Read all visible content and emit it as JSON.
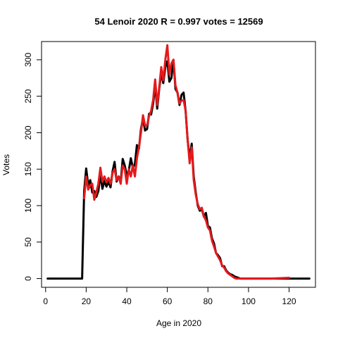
{
  "chart_data": {
    "type": "line",
    "title": "54 Lenoir 2020 R = 0.997 votes = 12569",
    "xlabel": "Age in 2020",
    "ylabel": "Votes",
    "xlim": [
      -2,
      133
    ],
    "ylim": [
      -12,
      325
    ],
    "xticks": [
      0,
      20,
      40,
      60,
      80,
      100,
      120
    ],
    "yticks": [
      0,
      50,
      100,
      150,
      200,
      250,
      300
    ],
    "grid": false,
    "legend": "none",
    "series": [
      {
        "color": "#000000",
        "x": [
          1,
          2,
          3,
          4,
          5,
          6,
          7,
          8,
          9,
          10,
          11,
          12,
          13,
          14,
          15,
          16,
          17,
          18,
          19,
          20,
          21,
          22,
          23,
          24,
          25,
          26,
          27,
          28,
          29,
          30,
          31,
          32,
          33,
          34,
          35,
          36,
          37,
          38,
          39,
          40,
          41,
          42,
          43,
          44,
          45,
          46,
          47,
          48,
          49,
          50,
          51,
          52,
          53,
          54,
          55,
          56,
          57,
          58,
          59,
          60,
          61,
          62,
          63,
          64,
          65,
          66,
          67,
          68,
          69,
          70,
          71,
          72,
          73,
          74,
          75,
          76,
          77,
          78,
          79,
          80,
          81,
          82,
          83,
          84,
          85,
          86,
          87,
          88,
          89,
          90,
          91,
          92,
          93,
          94,
          95,
          96,
          97,
          98,
          99,
          100,
          101,
          102,
          103,
          104,
          105,
          106,
          107,
          108,
          109,
          110,
          111,
          112,
          113,
          114,
          115,
          116,
          117,
          118,
          119,
          120,
          121,
          122,
          123,
          124,
          125,
          126,
          127,
          128,
          129,
          130
        ],
        "y": [
          0,
          0,
          0,
          0,
          0,
          0,
          0,
          0,
          0,
          0,
          0,
          0,
          0,
          0,
          0,
          0,
          0,
          0,
          120,
          151,
          128,
          135,
          118,
          120,
          112,
          120,
          143,
          123,
          134,
          126,
          133,
          125,
          147,
          160,
          133,
          140,
          132,
          164,
          155,
          142,
          148,
          165,
          152,
          157,
          183,
          178,
          205,
          220,
          203,
          205,
          226,
          225,
          240,
          265,
          233,
          260,
          282,
          268,
          290,
          298,
          270,
          275,
          300,
          260,
          255,
          238,
          252,
          255,
          230,
          190,
          165,
          185,
          140,
          118,
          100,
          93,
          95,
          85,
          90,
          72,
          70,
          55,
          48,
          35,
          32,
          28,
          17,
          17,
          11,
          8,
          6,
          5,
          3,
          2,
          1,
          0,
          0,
          0,
          0,
          0,
          0,
          0,
          0,
          0,
          0,
          0,
          0,
          0,
          0,
          0,
          0,
          0,
          0,
          0,
          0,
          0,
          0,
          0,
          0,
          0,
          0,
          0,
          0,
          0,
          0,
          0,
          0,
          0,
          0,
          0
        ]
      },
      {
        "color": "#e41a1c",
        "x": [
          19,
          20,
          21,
          22,
          23,
          24,
          25,
          26,
          27,
          28,
          29,
          30,
          31,
          32,
          33,
          34,
          35,
          36,
          37,
          38,
          39,
          40,
          41,
          42,
          43,
          44,
          45,
          46,
          47,
          48,
          49,
          50,
          51,
          52,
          53,
          54,
          55,
          56,
          57,
          58,
          59,
          60,
          61,
          62,
          63,
          64,
          65,
          66,
          67,
          68,
          69,
          70,
          71,
          72,
          73,
          74,
          75,
          76,
          77,
          78,
          79,
          80,
          81,
          82,
          83,
          84,
          85,
          86,
          87,
          88,
          89,
          90,
          91,
          92,
          93,
          94,
          95,
          96,
          97,
          98,
          99,
          100,
          101,
          102,
          103,
          104,
          105,
          106,
          107,
          108,
          109,
          110,
          111,
          120
        ],
        "y": [
          110,
          140,
          122,
          128,
          130,
          108,
          118,
          130,
          152,
          133,
          140,
          132,
          138,
          130,
          145,
          150,
          135,
          140,
          130,
          155,
          150,
          130,
          150,
          140,
          155,
          140,
          165,
          180,
          200,
          224,
          210,
          210,
          223,
          230,
          245,
          273,
          238,
          262,
          290,
          272,
          300,
          320,
          280,
          295,
          300,
          265,
          255,
          240,
          244,
          245,
          230,
          190,
          158,
          180,
          135,
          115,
          102,
          95,
          97,
          85,
          80,
          70,
          66,
          52,
          44,
          35,
          30,
          25,
          18,
          15,
          10,
          7,
          5,
          3,
          1,
          0,
          0,
          0,
          0,
          0,
          0,
          0,
          0,
          0,
          0,
          0,
          0,
          0,
          0,
          0,
          0,
          0,
          0,
          1
        ]
      }
    ]
  }
}
